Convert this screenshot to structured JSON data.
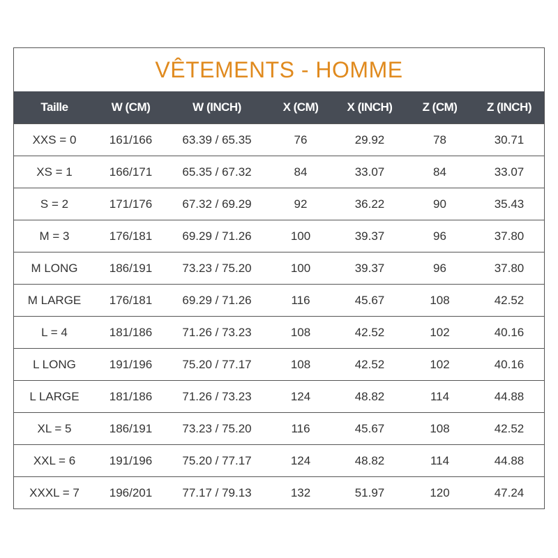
{
  "title": "VÊTEMENTS - HOMME",
  "colors": {
    "title": "#e08a1e",
    "header_bg": "#474c55"
  },
  "headers": [
    "Taille",
    "W (CM)",
    "W (INCH)",
    "X (CM)",
    "X (INCH)",
    "Z (CM)",
    "Z (INCH)"
  ],
  "rows": [
    [
      "XXS = 0",
      "161/166",
      "63.39 / 65.35",
      "76",
      "29.92",
      "78",
      "30.71"
    ],
    [
      "XS = 1",
      "166/171",
      "65.35 / 67.32",
      "84",
      "33.07",
      "84",
      "33.07"
    ],
    [
      "S = 2",
      "171/176",
      "67.32 / 69.29",
      "92",
      "36.22",
      "90",
      "35.43"
    ],
    [
      "M = 3",
      "176/181",
      "69.29 / 71.26",
      "100",
      "39.37",
      "96",
      "37.80"
    ],
    [
      "M LONG",
      "186/191",
      "73.23 / 75.20",
      "100",
      "39.37",
      "96",
      "37.80"
    ],
    [
      "M LARGE",
      "176/181",
      "69.29 / 71.26",
      "116",
      "45.67",
      "108",
      "42.52"
    ],
    [
      "L = 4",
      "181/186",
      "71.26 / 73.23",
      "108",
      "42.52",
      "102",
      "40.16"
    ],
    [
      "L LONG",
      "191/196",
      "75.20 / 77.17",
      "108",
      "42.52",
      "102",
      "40.16"
    ],
    [
      "L LARGE",
      "181/186",
      "71.26 / 73.23",
      "124",
      "48.82",
      "114",
      "44.88"
    ],
    [
      "XL = 5",
      "186/191",
      "73.23 / 75.20",
      "116",
      "45.67",
      "108",
      "42.52"
    ],
    [
      "XXL = 6",
      "191/196",
      "75.20 / 77.17",
      "124",
      "48.82",
      "114",
      "44.88"
    ],
    [
      "XXXL = 7",
      "196/201",
      "77.17 / 79.13",
      "132",
      "51.97",
      "120",
      "47.24"
    ]
  ]
}
